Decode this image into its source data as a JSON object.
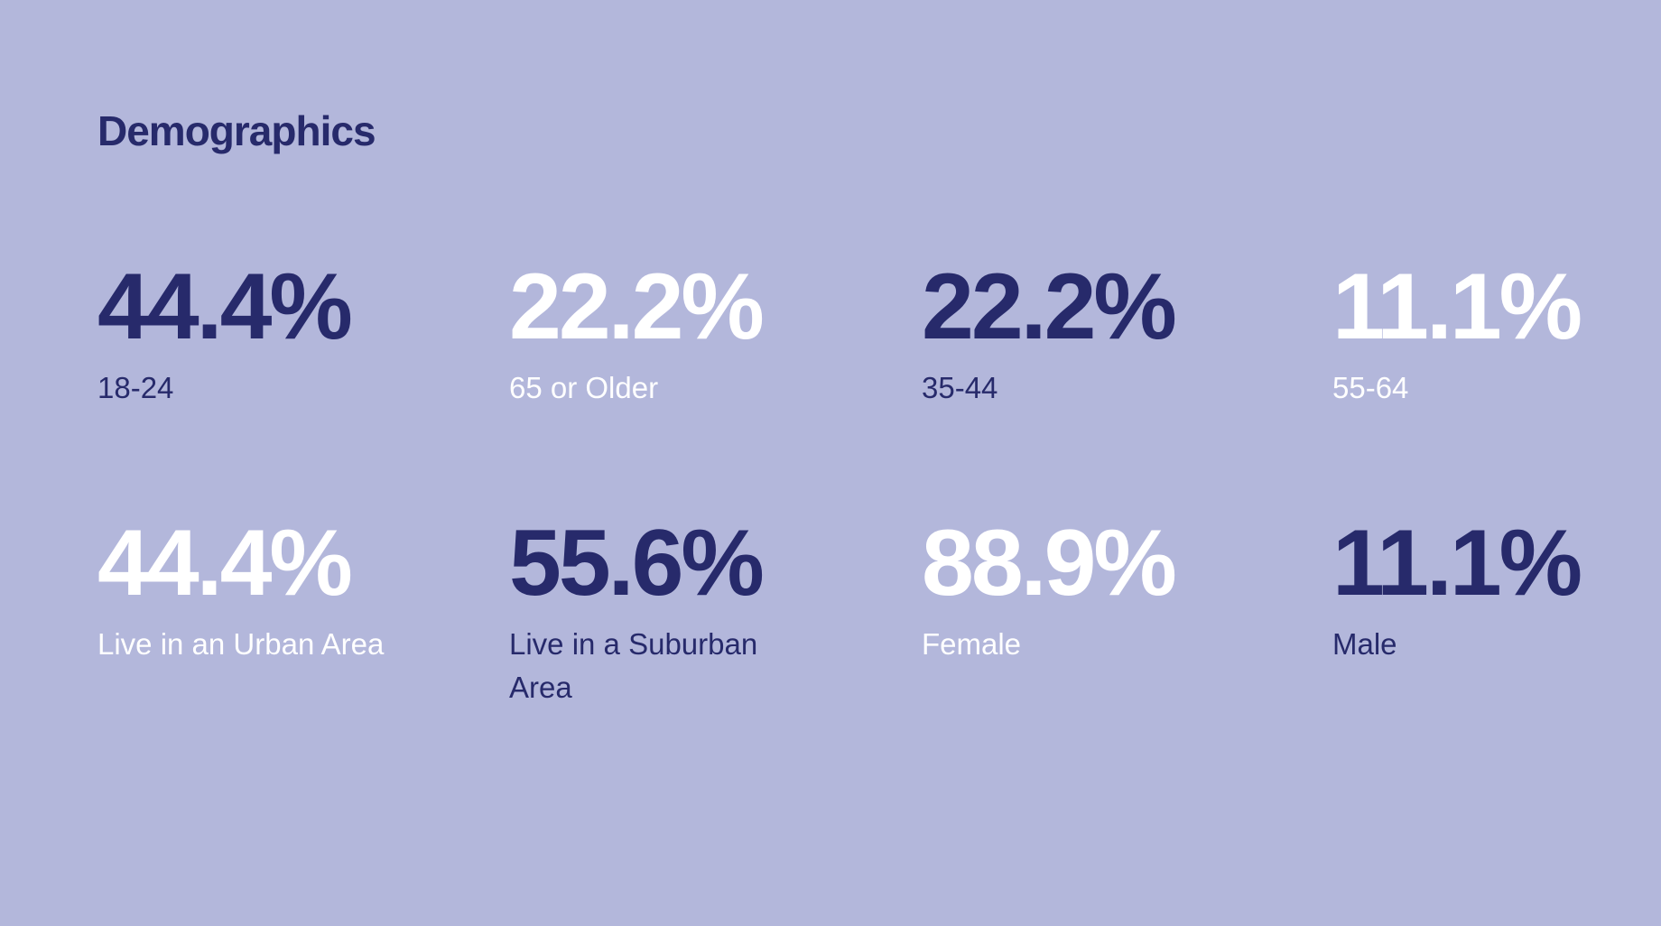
{
  "header": {
    "title": "Demographics"
  },
  "stats": [
    {
      "value": "44.4%",
      "label": "18-24",
      "color": "#272a6b"
    },
    {
      "value": "22.2%",
      "label": "65 or Older",
      "color": "#ffffff"
    },
    {
      "value": "22.2%",
      "label": "35-44",
      "color": "#272a6b"
    },
    {
      "value": "11.1%",
      "label": "55-64",
      "color": "#ffffff"
    },
    {
      "value": "44.4%",
      "label": "Live in an Urban Area",
      "color": "#ffffff"
    },
    {
      "value": "55.6%",
      "label": "Live in a Suburban Area",
      "color": "#272a6b"
    },
    {
      "value": "88.9%",
      "label": "Female",
      "color": "#ffffff"
    },
    {
      "value": "11.1%",
      "label": "Male",
      "color": "#272a6b"
    }
  ]
}
